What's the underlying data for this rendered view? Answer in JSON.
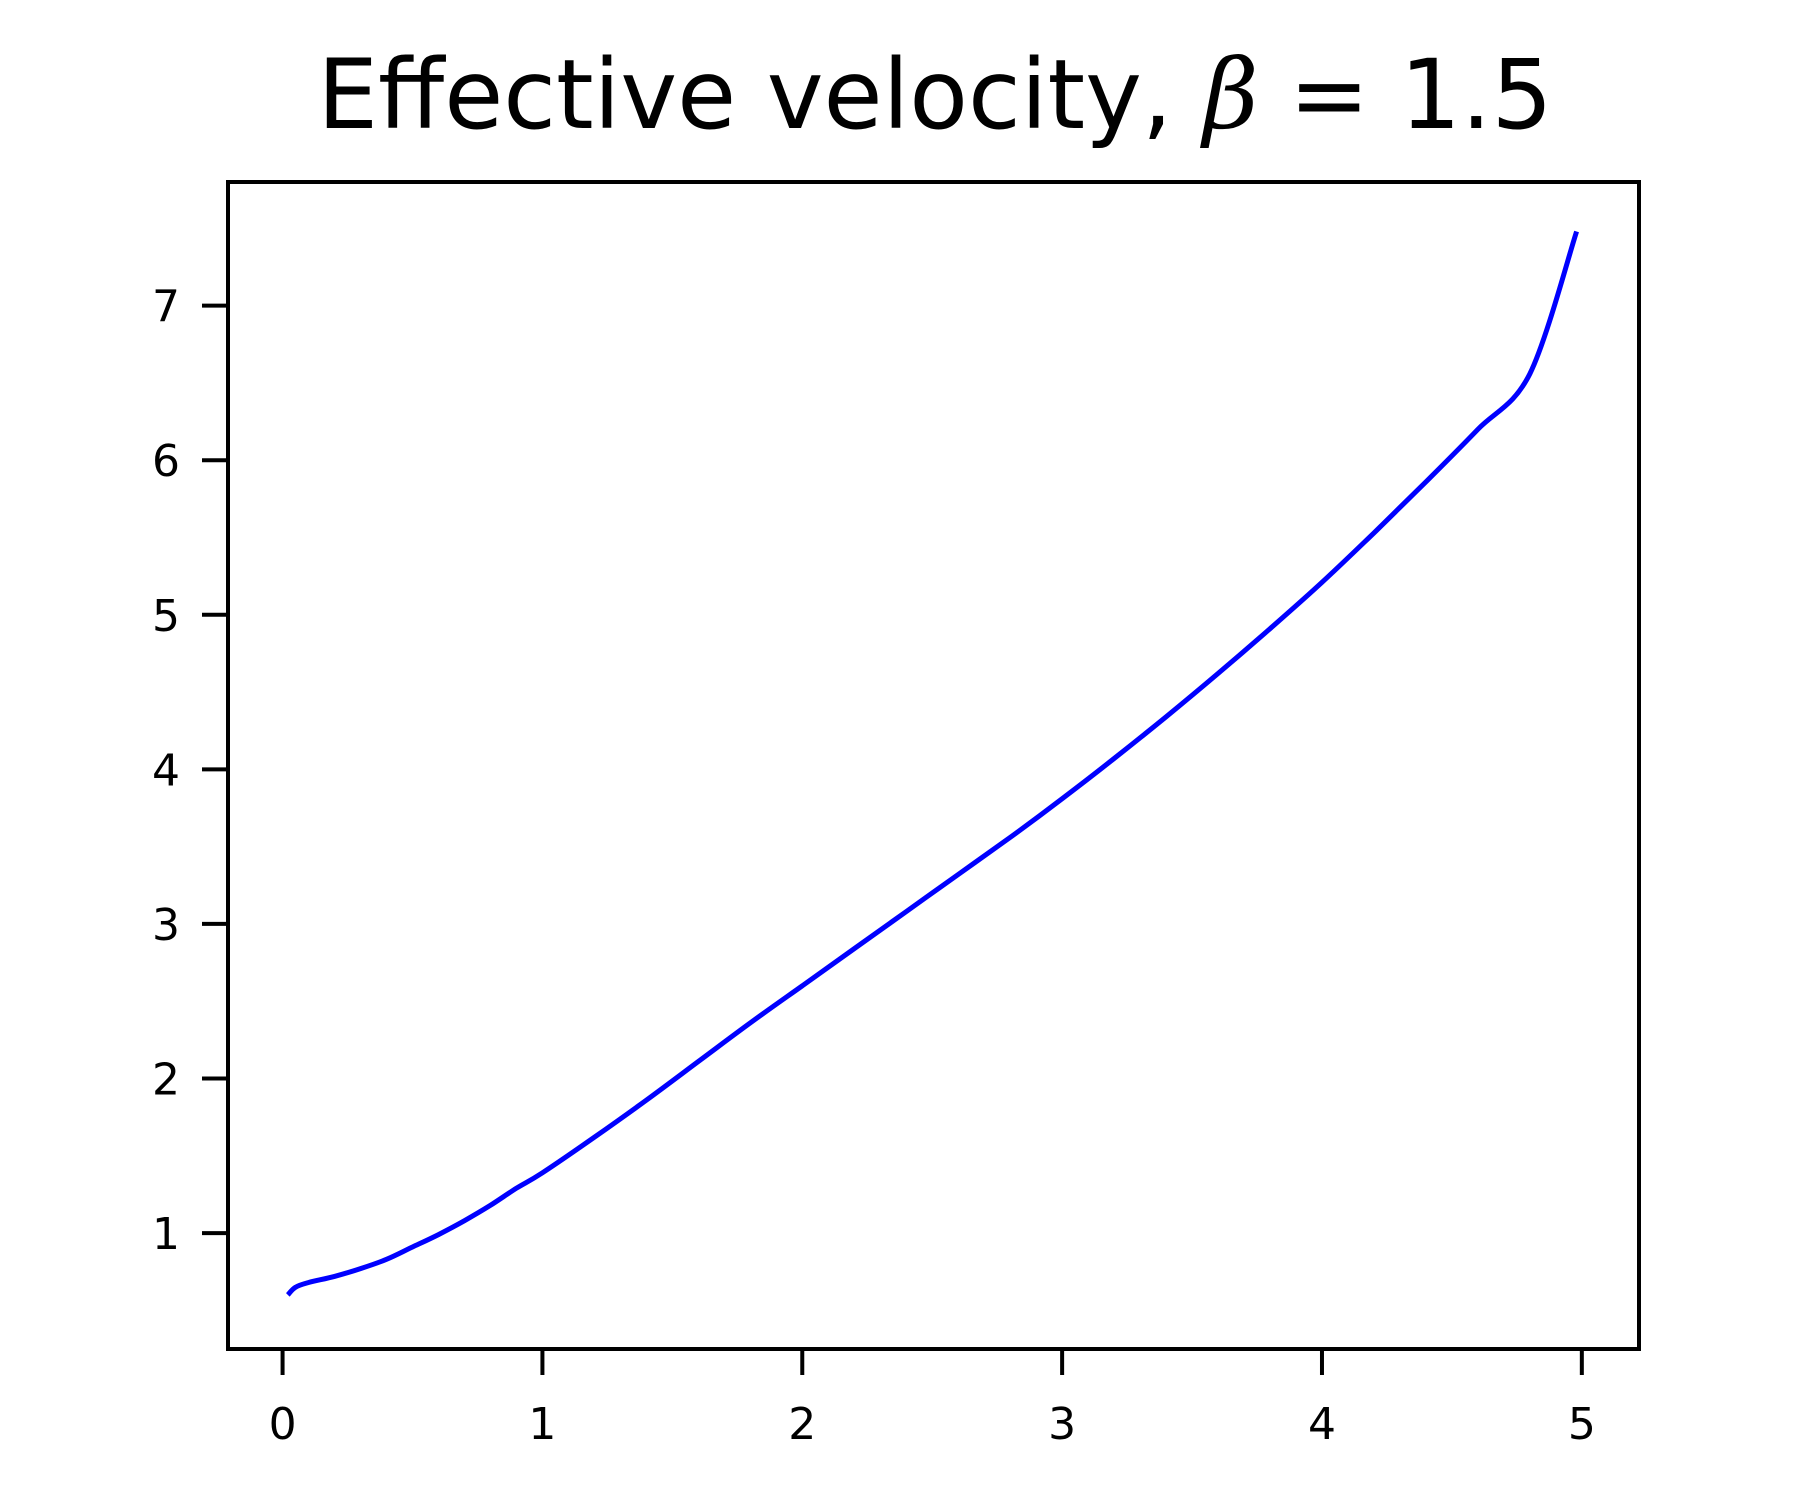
{
  "chart_data": {
    "type": "line",
    "title": "Effective velocity, β = 1.5",
    "title_parts": {
      "text": "Effective velocity, ",
      "math_symbol": "β",
      "math_rest": " = 1.5"
    },
    "xlabel": "",
    "ylabel": "",
    "xlim": [
      -0.21,
      5.22
    ],
    "ylim": [
      0.25,
      7.8
    ],
    "xticks": [
      0,
      1,
      2,
      3,
      4,
      5
    ],
    "yticks": [
      1,
      2,
      3,
      4,
      5,
      6,
      7
    ],
    "grid": false,
    "legend": "none",
    "series": [
      {
        "color": "#0000ff",
        "x": [
          0.02,
          0.05,
          0.1,
          0.2,
          0.3,
          0.4,
          0.5,
          0.6,
          0.7,
          0.8,
          0.9,
          1.0,
          1.2,
          1.4,
          1.6,
          1.8,
          2.0,
          2.2,
          2.4,
          2.6,
          2.8,
          3.0,
          3.2,
          3.4,
          3.6,
          3.8,
          4.0,
          4.2,
          4.4,
          4.6,
          4.8,
          4.98
        ],
        "y": [
          0.6,
          0.65,
          0.68,
          0.72,
          0.77,
          0.83,
          0.91,
          0.99,
          1.08,
          1.18,
          1.29,
          1.39,
          1.62,
          1.86,
          2.11,
          2.36,
          2.6,
          2.84,
          3.08,
          3.32,
          3.56,
          3.81,
          4.07,
          4.34,
          4.62,
          4.91,
          5.21,
          5.53,
          5.86,
          6.2,
          6.56,
          7.48
        ]
      }
    ]
  }
}
